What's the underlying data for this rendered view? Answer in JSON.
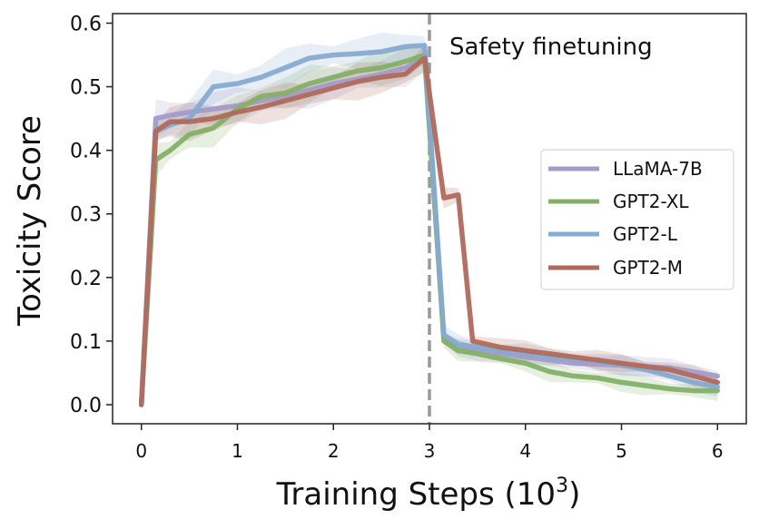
{
  "chart_data": {
    "type": "line",
    "xlabel": "Training Steps (10",
    "xlabel_exp": "3",
    "xlabel_close": ")",
    "ylabel": "Toxicity Score",
    "xlim": [
      -0.3,
      6.3
    ],
    "ylim": [
      -0.03,
      0.615
    ],
    "xticks": [
      0,
      1,
      2,
      3,
      4,
      5,
      6
    ],
    "yticks": [
      0.0,
      0.1,
      0.2,
      0.3,
      0.4,
      0.5,
      0.6
    ],
    "ytick_labels": [
      "0.0",
      "0.1",
      "0.2",
      "0.3",
      "0.4",
      "0.5",
      "0.6"
    ],
    "grid": false,
    "legend_position": "right",
    "vline": {
      "x": 3,
      "color": "#999999"
    },
    "annotation": {
      "text": "Safety finetuning",
      "x": 3.2,
      "y": 0.565
    },
    "series": [
      {
        "name": "LLaMA-7B",
        "color": "#a39cc9",
        "x": [
          0,
          0.15,
          0.3,
          0.5,
          0.75,
          1.0,
          1.25,
          1.5,
          1.75,
          2.0,
          2.25,
          2.5,
          2.75,
          2.95,
          3.15,
          3.3,
          3.5,
          4.0,
          4.5,
          5.0,
          5.5,
          6.0
        ],
        "y": [
          0.0,
          0.45,
          0.455,
          0.46,
          0.465,
          0.47,
          0.478,
          0.485,
          0.495,
          0.505,
          0.512,
          0.52,
          0.53,
          0.545,
          0.105,
          0.09,
          0.085,
          0.075,
          0.065,
          0.062,
          0.058,
          0.045
        ]
      },
      {
        "name": "GPT2-XL",
        "color": "#83b066",
        "x": [
          0,
          0.15,
          0.3,
          0.5,
          0.75,
          1.0,
          1.25,
          1.5,
          1.75,
          2.0,
          2.25,
          2.5,
          2.75,
          2.95,
          3.15,
          3.3,
          3.5,
          3.75,
          4.0,
          4.25,
          4.5,
          4.75,
          5.0,
          5.25,
          5.5,
          5.75,
          6.0
        ],
        "y": [
          0.0,
          0.385,
          0.4,
          0.425,
          0.435,
          0.465,
          0.485,
          0.49,
          0.505,
          0.515,
          0.525,
          0.53,
          0.54,
          0.55,
          0.1,
          0.085,
          0.08,
          0.072,
          0.065,
          0.052,
          0.045,
          0.042,
          0.035,
          0.03,
          0.025,
          0.022,
          0.022
        ]
      },
      {
        "name": "GPT2-L",
        "color": "#86aad0",
        "x": [
          0,
          0.15,
          0.3,
          0.5,
          0.75,
          1.0,
          1.25,
          1.5,
          1.75,
          2.0,
          2.25,
          2.5,
          2.75,
          2.95,
          3.15,
          3.3,
          3.5,
          3.75,
          4.0,
          4.25,
          4.5,
          4.75,
          5.0,
          5.25,
          5.5,
          5.75,
          6.0
        ],
        "y": [
          0.0,
          0.43,
          0.44,
          0.45,
          0.5,
          0.505,
          0.515,
          0.53,
          0.545,
          0.55,
          0.552,
          0.555,
          0.563,
          0.565,
          0.11,
          0.095,
          0.09,
          0.085,
          0.08,
          0.075,
          0.072,
          0.068,
          0.062,
          0.055,
          0.045,
          0.035,
          0.028
        ]
      },
      {
        "name": "GPT2-M",
        "color": "#b06a5c",
        "x": [
          0,
          0.15,
          0.3,
          0.5,
          0.75,
          1.0,
          1.25,
          1.5,
          1.75,
          2.0,
          2.25,
          2.5,
          2.75,
          2.95,
          3.15,
          3.3,
          3.45,
          3.75,
          4.0,
          4.25,
          4.5,
          4.75,
          5.0,
          5.25,
          5.5,
          5.75,
          6.0
        ],
        "y": [
          0.0,
          0.43,
          0.445,
          0.445,
          0.45,
          0.46,
          0.468,
          0.478,
          0.488,
          0.498,
          0.508,
          0.515,
          0.52,
          0.545,
          0.325,
          0.33,
          0.1,
          0.09,
          0.085,
          0.08,
          0.075,
          0.07,
          0.065,
          0.06,
          0.055,
          0.045,
          0.035
        ]
      }
    ]
  }
}
